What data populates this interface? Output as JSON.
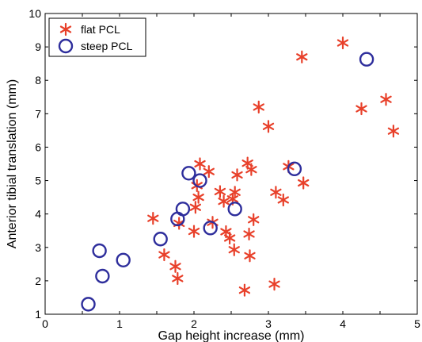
{
  "chart_data": {
    "type": "scatter",
    "xlabel": "Gap height increase (mm)",
    "ylabel": "Anterior tibial translation (mm)",
    "xlim": [
      0,
      5
    ],
    "ylim": [
      1,
      10
    ],
    "xticks": [
      0,
      0.5,
      1,
      1.5,
      2,
      2.5,
      3,
      3.5,
      4,
      4.5,
      5
    ],
    "xtick_labels": [
      "0",
      "",
      "1",
      "",
      "2",
      "",
      "3",
      "",
      "4",
      "",
      "5"
    ],
    "yticks": [
      1,
      2,
      3,
      4,
      5,
      6,
      7,
      8,
      9,
      10
    ],
    "ytick_labels": [
      "1",
      "2",
      "3",
      "4",
      "5",
      "6",
      "7",
      "8",
      "9",
      "10"
    ],
    "grid": false,
    "legend_position": "top-left",
    "series": [
      {
        "name": "flat PCL",
        "marker": "asterisk",
        "color": "#e8402a",
        "points": [
          [
            1.45,
            3.87
          ],
          [
            1.6,
            2.78
          ],
          [
            1.75,
            2.43
          ],
          [
            1.78,
            2.07
          ],
          [
            1.8,
            3.72
          ],
          [
            2.0,
            3.48
          ],
          [
            2.02,
            4.2
          ],
          [
            2.04,
            4.85
          ],
          [
            2.06,
            4.5
          ],
          [
            2.08,
            5.5
          ],
          [
            2.2,
            5.27
          ],
          [
            2.25,
            3.75
          ],
          [
            2.35,
            4.67
          ],
          [
            2.4,
            4.38
          ],
          [
            2.43,
            3.47
          ],
          [
            2.48,
            3.28
          ],
          [
            2.52,
            4.45
          ],
          [
            2.54,
            2.93
          ],
          [
            2.55,
            4.65
          ],
          [
            2.58,
            5.17
          ],
          [
            2.68,
            1.72
          ],
          [
            2.72,
            5.52
          ],
          [
            2.74,
            3.4
          ],
          [
            2.75,
            2.75
          ],
          [
            2.77,
            5.33
          ],
          [
            2.8,
            3.83
          ],
          [
            2.87,
            7.2
          ],
          [
            3.0,
            6.62
          ],
          [
            3.08,
            1.9
          ],
          [
            3.1,
            4.65
          ],
          [
            3.2,
            4.42
          ],
          [
            3.27,
            5.42
          ],
          [
            3.45,
            8.7
          ],
          [
            3.47,
            4.93
          ],
          [
            4.0,
            9.12
          ],
          [
            4.25,
            7.15
          ],
          [
            4.58,
            7.43
          ],
          [
            4.68,
            6.48
          ]
        ]
      },
      {
        "name": "steep PCL",
        "marker": "circle",
        "color": "#2e2e9c",
        "points": [
          [
            0.58,
            1.3
          ],
          [
            0.73,
            2.9
          ],
          [
            0.77,
            2.14
          ],
          [
            1.05,
            2.62
          ],
          [
            1.55,
            3.25
          ],
          [
            1.78,
            3.85
          ],
          [
            1.85,
            4.15
          ],
          [
            1.93,
            5.22
          ],
          [
            2.08,
            5.0
          ],
          [
            2.22,
            3.58
          ],
          [
            2.55,
            4.15
          ],
          [
            3.35,
            5.35
          ],
          [
            4.32,
            8.63
          ]
        ]
      }
    ]
  }
}
